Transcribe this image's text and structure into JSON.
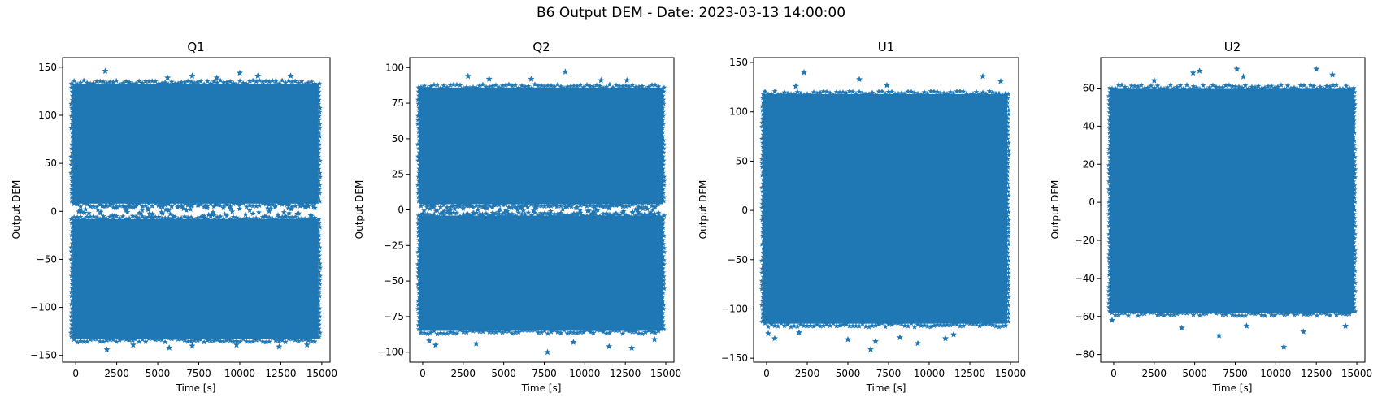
{
  "figure": {
    "title": "B6 Output DEM - Date: 2023-03-13 14:00:00",
    "marker_color": "#1f77b4"
  },
  "chart_data": [
    {
      "type": "scatter",
      "title": "Q1",
      "xlabel": "Time [s]",
      "ylabel": "Output DEM",
      "xlim": [
        -800,
        15500
      ],
      "ylim": [
        -157,
        160
      ],
      "xticks": [
        0,
        2500,
        5000,
        7500,
        10000,
        12500,
        15000
      ],
      "yticks": [
        -150,
        -100,
        -50,
        0,
        50,
        100,
        150
      ],
      "marker": "star",
      "series_color": "#1f77b4",
      "x_range": [
        0,
        14600
      ],
      "bands": [
        [
          -133,
          -8
        ],
        [
          8,
          133
        ]
      ],
      "gap": [
        -8,
        8
      ],
      "approx_max": 146,
      "approx_min": -144,
      "outliers": [
        [
          1800,
          146
        ],
        [
          5600,
          139
        ],
        [
          7100,
          141
        ],
        [
          8600,
          139
        ],
        [
          10000,
          144
        ],
        [
          11100,
          141
        ],
        [
          12200,
          136
        ],
        [
          13100,
          141
        ],
        [
          1900,
          -144
        ],
        [
          3500,
          -139
        ],
        [
          5700,
          -142
        ],
        [
          7100,
          -140
        ],
        [
          9800,
          -139
        ],
        [
          12400,
          -141
        ],
        [
          14100,
          -139
        ]
      ],
      "gap_points": [
        [
          600,
          2
        ],
        [
          1500,
          -2
        ],
        [
          2300,
          4
        ],
        [
          3100,
          1
        ],
        [
          4400,
          3
        ],
        [
          5300,
          -2
        ],
        [
          6200,
          4
        ],
        [
          7000,
          2
        ],
        [
          8300,
          -3
        ],
        [
          9400,
          4
        ],
        [
          10600,
          1
        ],
        [
          11700,
          3
        ],
        [
          13000,
          -2
        ],
        [
          14000,
          4
        ]
      ]
    },
    {
      "type": "scatter",
      "title": "Q2",
      "xlabel": "Time [s]",
      "ylabel": "Output DEM",
      "xlim": [
        -800,
        15500
      ],
      "ylim": [
        -107,
        107
      ],
      "xticks": [
        0,
        2500,
        5000,
        7500,
        10000,
        12500,
        15000
      ],
      "yticks": [
        -100,
        -75,
        -50,
        -25,
        0,
        25,
        50,
        75,
        100
      ],
      "marker": "star",
      "series_color": "#1f77b4",
      "x_range": [
        0,
        14600
      ],
      "bands": [
        [
          -85,
          -4
        ],
        [
          4,
          86
        ]
      ],
      "gap": [
        -4,
        4
      ],
      "approx_max": 97,
      "approx_min": -100,
      "outliers": [
        [
          2800,
          94
        ],
        [
          4100,
          92
        ],
        [
          6700,
          92
        ],
        [
          8800,
          97
        ],
        [
          11000,
          91
        ],
        [
          12600,
          91
        ],
        [
          400,
          -92
        ],
        [
          800,
          -95
        ],
        [
          3300,
          -94
        ],
        [
          7700,
          -100
        ],
        [
          9300,
          -93
        ],
        [
          11500,
          -96
        ],
        [
          12900,
          -97
        ],
        [
          14300,
          -91
        ]
      ],
      "gap_points": [
        [
          700,
          2
        ],
        [
          1600,
          -1
        ],
        [
          2500,
          1
        ],
        [
          3400,
          0
        ],
        [
          4300,
          2
        ],
        [
          5200,
          -1
        ],
        [
          6100,
          2
        ],
        [
          7000,
          1
        ],
        [
          7900,
          -1
        ],
        [
          8800,
          2
        ],
        [
          9700,
          0
        ],
        [
          10600,
          2
        ],
        [
          11500,
          1
        ],
        [
          12400,
          -1
        ],
        [
          13300,
          2
        ],
        [
          14200,
          0
        ]
      ]
    },
    {
      "type": "scatter",
      "title": "U1",
      "xlabel": "Time [s]",
      "ylabel": "Output DEM",
      "xlim": [
        -800,
        15500
      ],
      "ylim": [
        -154,
        155
      ],
      "xticks": [
        0,
        2500,
        5000,
        7500,
        10000,
        12500,
        15000
      ],
      "yticks": [
        -150,
        -100,
        -50,
        0,
        50,
        100,
        150
      ],
      "marker": "star",
      "series_color": "#1f77b4",
      "x_range": [
        0,
        14600
      ],
      "bands": [
        [
          -115,
          118
        ]
      ],
      "gap": null,
      "approx_max": 140,
      "approx_min": -140,
      "outliers": [
        [
          2300,
          140
        ],
        [
          5700,
          133
        ],
        [
          7400,
          127
        ],
        [
          13300,
          136
        ],
        [
          14400,
          131
        ],
        [
          1800,
          126
        ],
        [
          100,
          -125
        ],
        [
          500,
          -130
        ],
        [
          2000,
          -124
        ],
        [
          5000,
          -131
        ],
        [
          6400,
          -141
        ],
        [
          6700,
          -133
        ],
        [
          8200,
          -129
        ],
        [
          9300,
          -135
        ],
        [
          11000,
          -130
        ],
        [
          11500,
          -126
        ]
      ],
      "gap_points": []
    },
    {
      "type": "scatter",
      "title": "U2",
      "xlabel": "Time [s]",
      "ylabel": "Output DEM",
      "xlim": [
        -800,
        15500
      ],
      "ylim": [
        -84,
        76
      ],
      "xticks": [
        0,
        2500,
        5000,
        7500,
        10000,
        12500,
        15000
      ],
      "yticks": [
        -80,
        -60,
        -40,
        -20,
        0,
        20,
        40,
        60
      ],
      "marker": "star",
      "series_color": "#1f77b4",
      "x_range": [
        0,
        14600
      ],
      "bands": [
        [
          -58,
          60
        ]
      ],
      "gap": null,
      "approx_max": 70,
      "approx_min": -76,
      "outliers": [
        [
          4900,
          68
        ],
        [
          5300,
          69
        ],
        [
          7600,
          70
        ],
        [
          8000,
          66
        ],
        [
          12500,
          70
        ],
        [
          13500,
          67
        ],
        [
          2500,
          64
        ],
        [
          -100,
          -62
        ],
        [
          4200,
          -66
        ],
        [
          6500,
          -70
        ],
        [
          8200,
          -65
        ],
        [
          10500,
          -76
        ],
        [
          11700,
          -68
        ],
        [
          14300,
          -65
        ]
      ],
      "gap_points": []
    }
  ]
}
